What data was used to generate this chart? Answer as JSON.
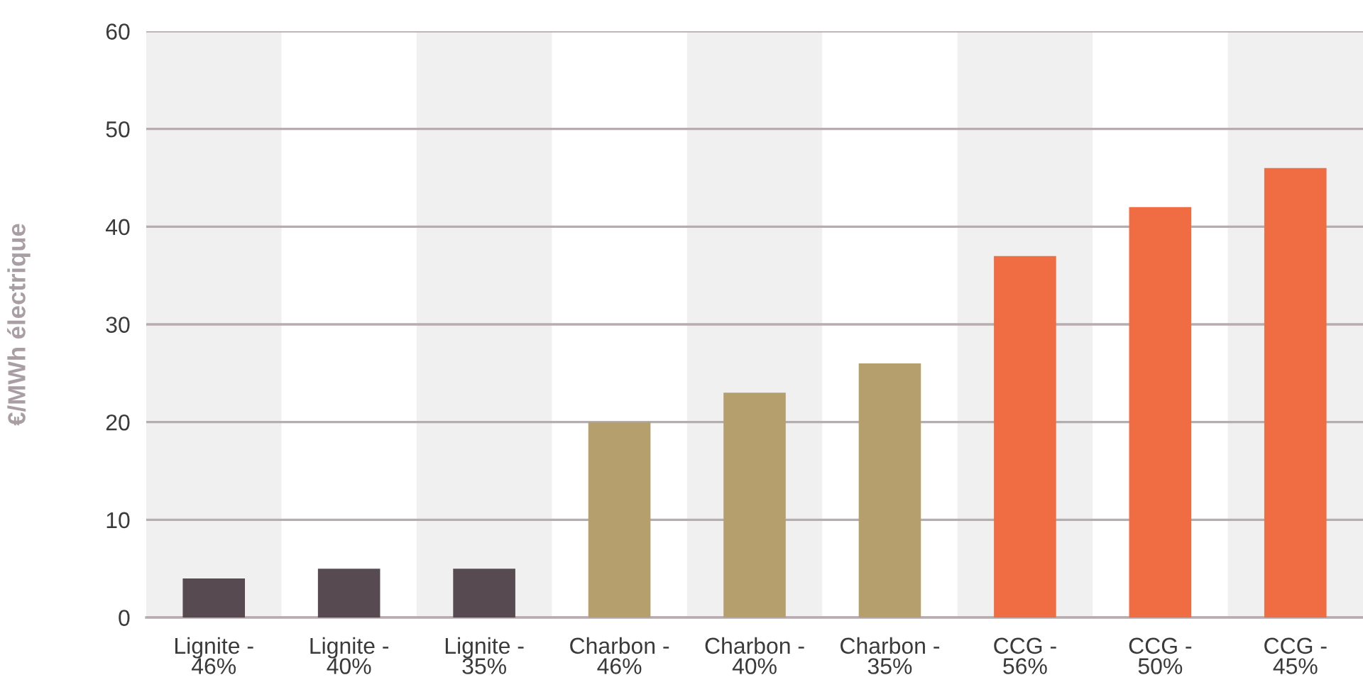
{
  "chart_data": {
    "type": "bar",
    "ylabel": "€/MWh électrique",
    "categories": [
      "Lignite -\n46%",
      "Lignite -\n40%",
      "Lignite -\n35%",
      "Charbon -\n46%",
      "Charbon -\n40%",
      "Charbon -\n35%",
      "CCG -\n56%",
      "CCG -\n50%",
      "CCG -\n45%"
    ],
    "values": [
      4,
      5,
      5,
      20,
      23,
      26,
      37,
      42,
      46
    ],
    "colors": [
      "#584a51",
      "#584a51",
      "#584a51",
      "#b5a06d",
      "#b5a06d",
      "#b5a06d",
      "#f06c42",
      "#f06c42",
      "#f06c42"
    ],
    "ylim": [
      0,
      60
    ],
    "yticks": [
      0,
      10,
      20,
      30,
      40,
      50,
      60
    ],
    "grid": "y",
    "bands": [
      {
        "axis": "x",
        "from": "Lignite -\n46%",
        "to": "Lignite -\n46%",
        "color": "#f0f0f0"
      },
      {
        "axis": "x",
        "from": "Lignite -\n35%",
        "to": "Lignite -\n35%",
        "color": "#f0f0f0"
      },
      {
        "axis": "x",
        "from": "Charbon -\n40%",
        "to": "Charbon -\n40%",
        "color": "#f0f0f0"
      },
      {
        "axis": "x",
        "from": "CCG -\n56%",
        "to": "CCG -\n56%",
        "color": "#f0f0f0"
      },
      {
        "axis": "x",
        "from": "CCG -\n45%",
        "to": "CCG -\n45%",
        "color": "#f0f0f0"
      }
    ]
  }
}
